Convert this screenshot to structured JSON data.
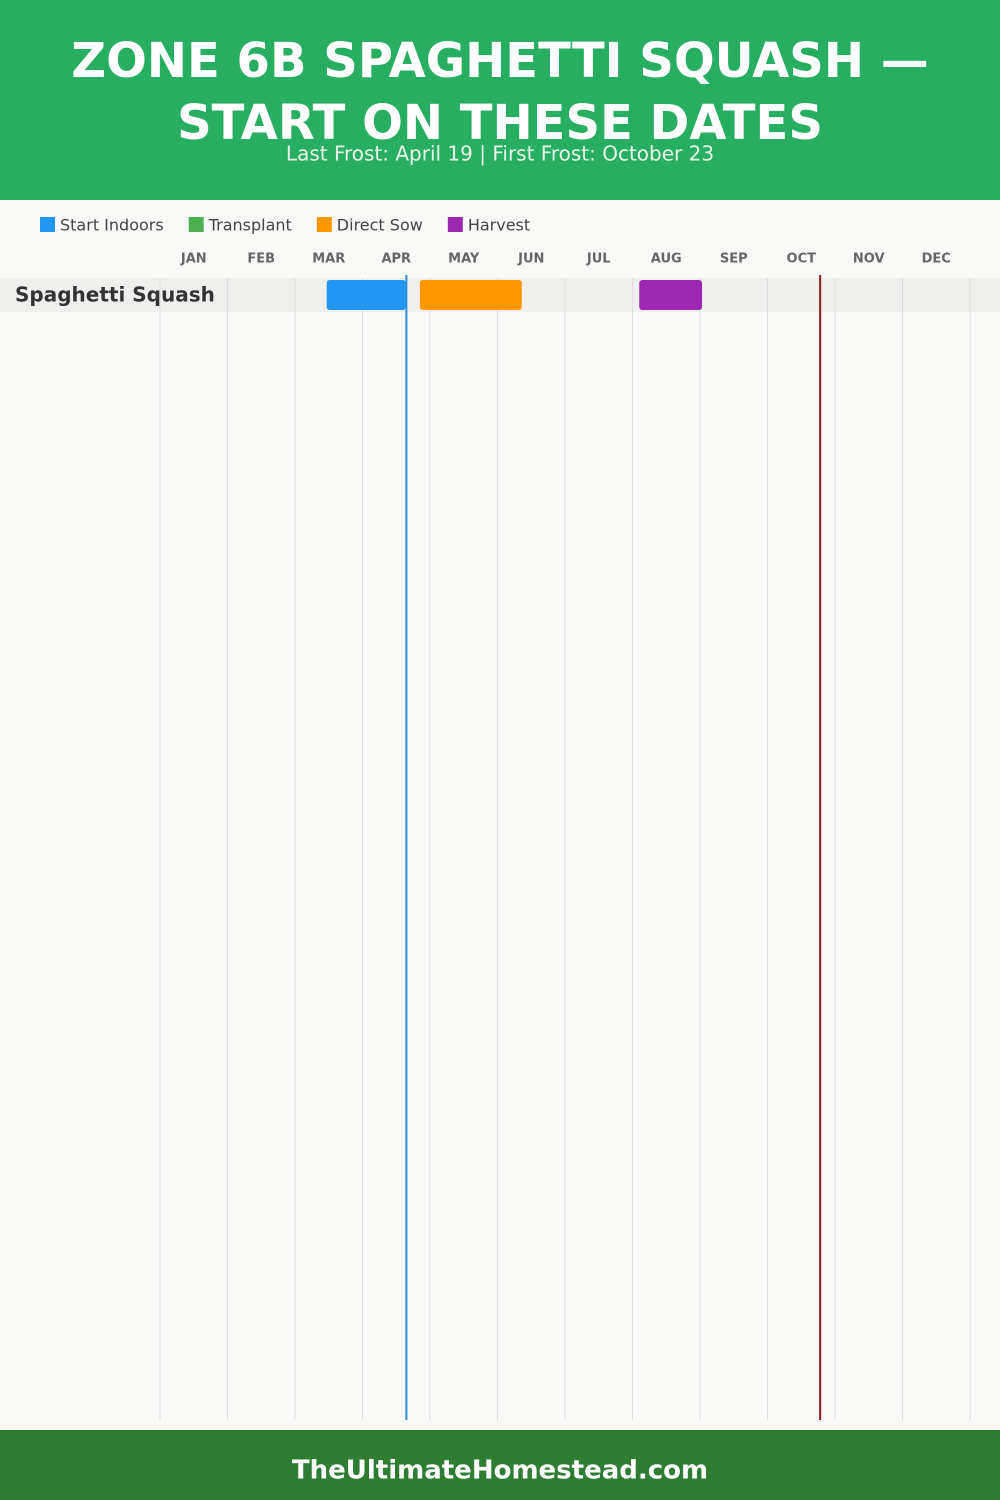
{
  "chart_data": {
    "type": "gantt",
    "title": [
      "ZONE 6B SPAGHETTI SQUASH —",
      "START ON THESE DATES"
    ],
    "subtitle": "Last Frost: April 19 | First Frost: October 23",
    "categories": [
      "Spaghetti Squash"
    ],
    "months": [
      "JAN",
      "FEB",
      "MAR",
      "APR",
      "MAY",
      "JUN",
      "JUL",
      "AUG",
      "SEP",
      "OCT",
      "NOV",
      "DEC"
    ],
    "xlim": [
      0,
      12
    ],
    "series": [
      {
        "name": "Start Indoors",
        "color": "#2196f3",
        "values": [
          [
            2.47,
            3.64
          ]
        ]
      },
      {
        "name": "Transplant",
        "color": "#4caf50",
        "values": [
          null
        ]
      },
      {
        "name": "Direct Sow",
        "color": "#ff9800",
        "values": [
          [
            3.85,
            5.36
          ]
        ]
      },
      {
        "name": "Harvest",
        "color": "#9c27b0",
        "values": [
          [
            7.1,
            8.03
          ]
        ]
      }
    ],
    "markers": [
      {
        "value": 3.65,
        "color": "#2a8fd8"
      },
      {
        "value": 9.78,
        "color": "#8b1a1a"
      }
    ],
    "grid": true,
    "footer": "TheUltimateHomestead.com"
  }
}
